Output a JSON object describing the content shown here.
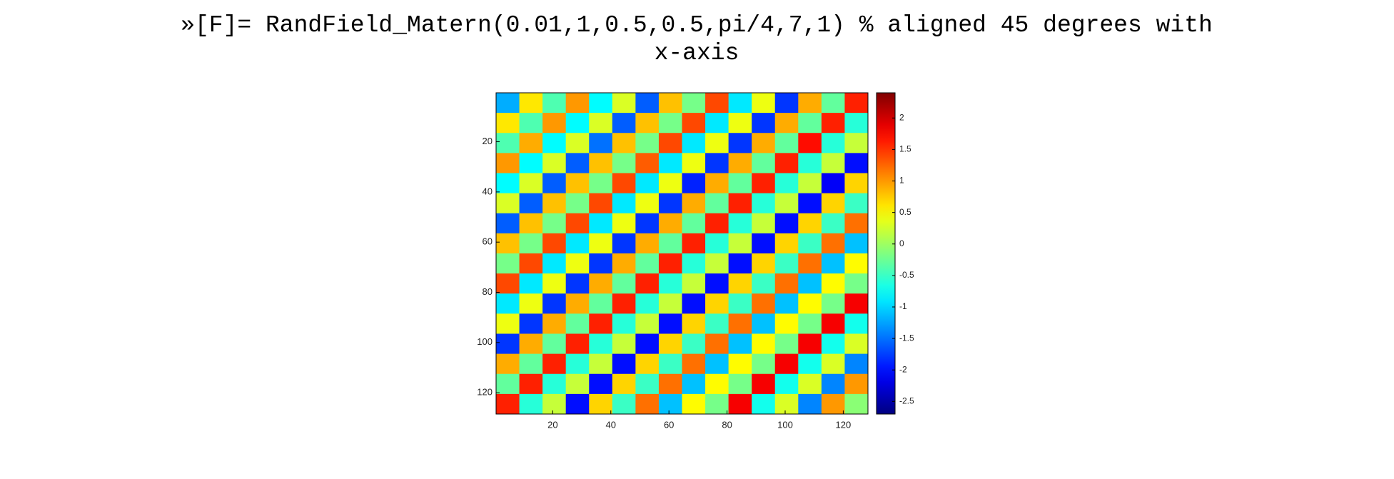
{
  "chart_data": {
    "type": "heatmap",
    "title": "»[F]= RandField_Matern(0.01,1,0.5,0.5,pi/4,7,1) % aligned 45 degrees with x-axis",
    "xlim": [
      0.5,
      128.5
    ],
    "ylim": [
      0.5,
      128.5
    ],
    "y_reversed": true,
    "xticks": [
      20,
      40,
      60,
      80,
      100,
      120
    ],
    "yticks": [
      20,
      40,
      60,
      80,
      100,
      120
    ],
    "colormap": "jet",
    "clim": [
      -2.7,
      2.4
    ],
    "colorbar_ticks": [
      -2.5,
      -2,
      -1.5,
      -1,
      -0.5,
      0,
      0.5,
      1,
      1.5,
      2
    ],
    "z": [
      [
        -1.2,
        0.6,
        -0.4,
        1.0,
        -0.8,
        0.3,
        -1.6,
        0.8,
        -0.2,
        1.4,
        -0.9,
        0.4,
        -1.8,
        0.9,
        -0.3,
        1.6
      ],
      [
        0.6,
        -0.4,
        1.0,
        -0.8,
        0.3,
        -1.6,
        0.8,
        -0.2,
        1.4,
        -0.9,
        0.4,
        -1.8,
        0.9,
        -0.3,
        1.6,
        -0.6
      ],
      [
        -0.4,
        0.9,
        -0.8,
        0.3,
        -1.5,
        0.8,
        -0.2,
        1.4,
        -0.9,
        0.4,
        -1.8,
        0.9,
        -0.3,
        1.7,
        -0.6,
        0.2
      ],
      [
        1.0,
        -0.8,
        0.3,
        -1.6,
        0.8,
        -0.2,
        1.3,
        -0.9,
        0.4,
        -1.8,
        0.9,
        -0.3,
        1.6,
        -0.6,
        0.2,
        -2.0
      ],
      [
        -0.8,
        0.3,
        -1.6,
        0.8,
        -0.2,
        1.4,
        -0.9,
        0.4,
        -1.9,
        0.9,
        -0.3,
        1.6,
        -0.6,
        0.2,
        -2.1,
        0.7
      ],
      [
        0.3,
        -1.6,
        0.8,
        -0.2,
        1.4,
        -0.9,
        0.4,
        -1.8,
        0.9,
        -0.3,
        1.6,
        -0.6,
        0.2,
        -2.0,
        0.7,
        -0.5
      ],
      [
        -1.6,
        0.8,
        -0.2,
        1.4,
        -0.9,
        0.4,
        -1.8,
        0.9,
        -0.3,
        1.6,
        -0.6,
        0.2,
        -2.0,
        0.7,
        -0.5,
        1.2
      ],
      [
        0.8,
        -0.2,
        1.4,
        -0.9,
        0.4,
        -1.8,
        0.9,
        -0.3,
        1.6,
        -0.6,
        0.2,
        -2.0,
        0.7,
        -0.5,
        1.2,
        -1.1
      ],
      [
        -0.2,
        1.4,
        -0.9,
        0.4,
        -1.8,
        0.9,
        -0.3,
        1.6,
        -0.6,
        0.2,
        -2.0,
        0.7,
        -0.5,
        1.2,
        -1.1,
        0.5
      ],
      [
        1.4,
        -0.9,
        0.4,
        -1.8,
        0.9,
        -0.3,
        1.6,
        -0.6,
        0.2,
        -2.0,
        0.7,
        -0.5,
        1.2,
        -1.1,
        0.5,
        -0.2
      ],
      [
        -0.9,
        0.4,
        -1.8,
        0.9,
        -0.3,
        1.6,
        -0.6,
        0.2,
        -2.0,
        0.7,
        -0.5,
        1.2,
        -1.1,
        0.5,
        -0.2,
        1.8
      ],
      [
        0.4,
        -1.8,
        0.9,
        -0.3,
        1.6,
        -0.6,
        0.2,
        -2.0,
        0.7,
        -0.5,
        1.2,
        -1.1,
        0.5,
        -0.2,
        1.8,
        -0.7
      ],
      [
        -1.8,
        0.9,
        -0.3,
        1.6,
        -0.6,
        0.2,
        -2.0,
        0.7,
        -0.5,
        1.2,
        -1.1,
        0.5,
        -0.2,
        1.8,
        -0.7,
        0.3
      ],
      [
        0.9,
        -0.3,
        1.6,
        -0.6,
        0.2,
        -2.0,
        0.7,
        -0.5,
        1.2,
        -1.1,
        0.5,
        -0.2,
        1.8,
        -0.7,
        0.3,
        -1.4
      ],
      [
        -0.3,
        1.6,
        -0.6,
        0.2,
        -2.0,
        0.7,
        -0.5,
        1.2,
        -1.1,
        0.5,
        -0.2,
        1.8,
        -0.7,
        0.3,
        -1.4,
        1.0
      ],
      [
        1.6,
        -0.6,
        0.2,
        -2.0,
        0.7,
        -0.5,
        1.2,
        -1.1,
        0.5,
        -0.2,
        1.8,
        -0.7,
        0.3,
        -1.4,
        1.0,
        -0.1
      ]
    ]
  }
}
